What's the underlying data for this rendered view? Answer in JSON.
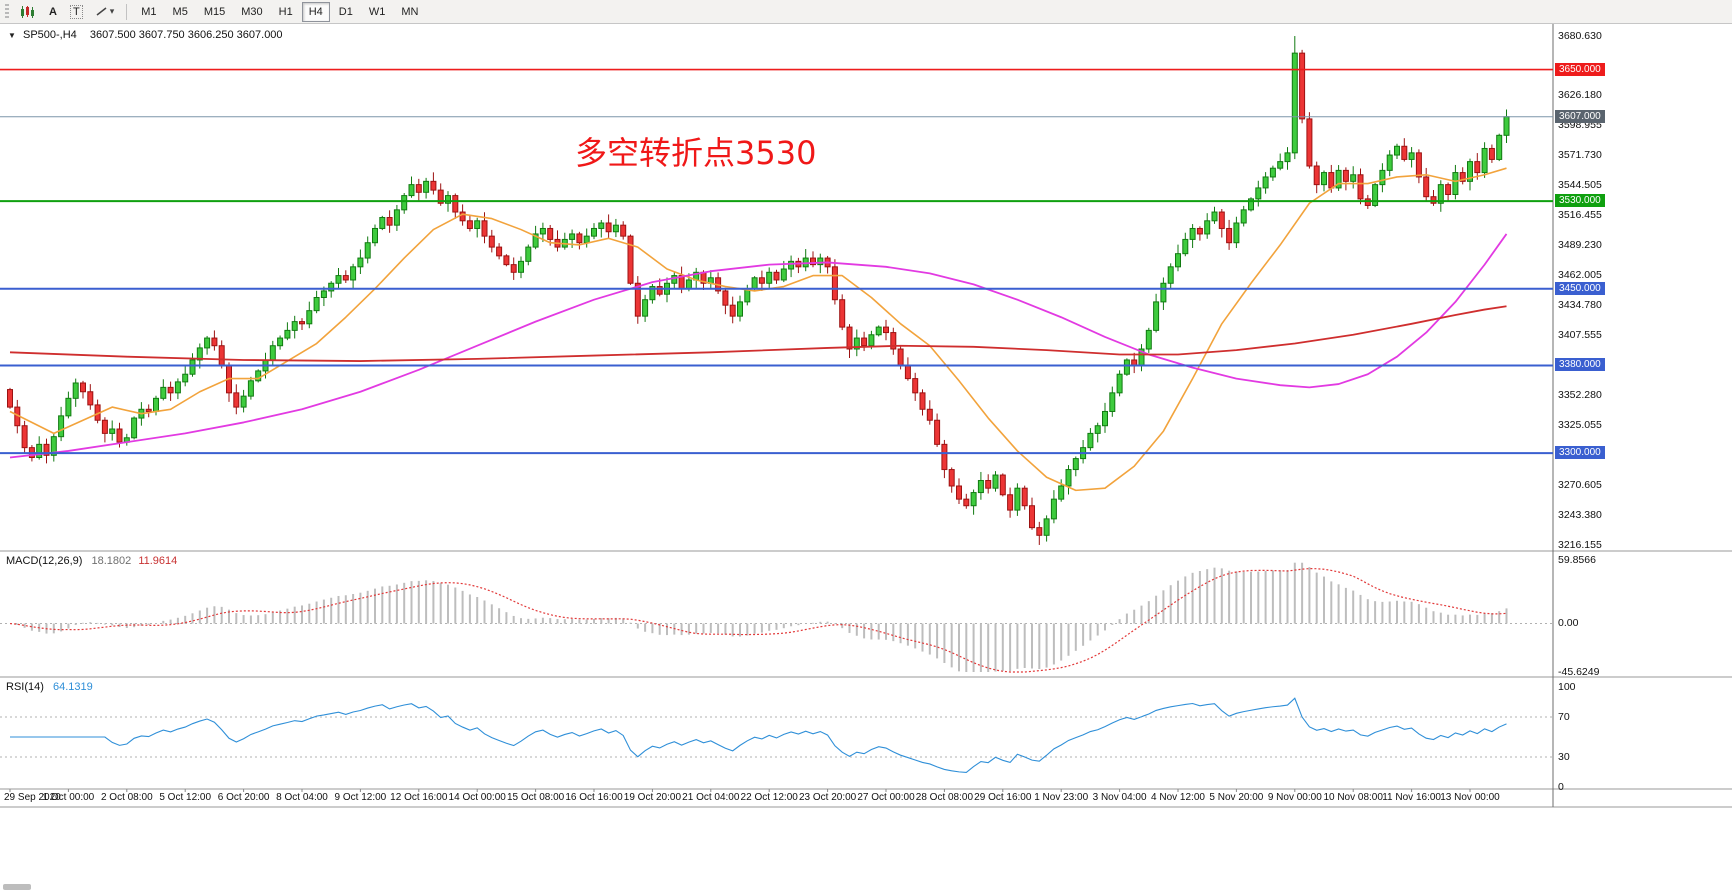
{
  "toolbar": {
    "text_tool_label": "A",
    "label_tool_label": "T",
    "caret_glyph": "▾",
    "timeframes": [
      {
        "label": "M1"
      },
      {
        "label": "M5"
      },
      {
        "label": "M15"
      },
      {
        "label": "M30"
      },
      {
        "label": "H1"
      },
      {
        "label": "H4",
        "active": true
      },
      {
        "label": "D1"
      },
      {
        "label": "W1"
      },
      {
        "label": "MN"
      }
    ]
  },
  "chart_header": {
    "collapse_glyph": "▼",
    "symbol": "SP500-,H4",
    "ohlc": "3607.500 3607.750 3606.250 3607.000"
  },
  "annotation": {
    "text": "多空转折点3530",
    "color": "#f01818"
  },
  "indicators": {
    "macd": {
      "name": "MACD(12,26,9)",
      "main": "18.1802",
      "signal": "11.9614"
    },
    "rsi": {
      "name": "RSI(14)",
      "value": "64.1319"
    }
  },
  "price_scale": {
    "labels": [
      "3680.630",
      "3626.180",
      "3598.955",
      "3571.730",
      "3544.505",
      "3516.455",
      "3489.230",
      "3462.005",
      "3434.780",
      "3407.555",
      "3352.280",
      "3325.055",
      "3270.605",
      "3243.380",
      "3216.155"
    ]
  },
  "time_axis": {
    "labels": [
      {
        "i": 0,
        "t": "29 Sep 2020"
      },
      {
        "i": 8,
        "t": "1 Oct 00:00"
      },
      {
        "i": 16,
        "t": "2 Oct 08:00"
      },
      {
        "i": 24,
        "t": "5 Oct 12:00"
      },
      {
        "i": 32,
        "t": "6 Oct 20:00"
      },
      {
        "i": 40,
        "t": "8 Oct 04:00"
      },
      {
        "i": 48,
        "t": "9 Oct 12:00"
      },
      {
        "i": 56,
        "t": "12 Oct 16:00"
      },
      {
        "i": 64,
        "t": "14 Oct 00:00"
      },
      {
        "i": 72,
        "t": "15 Oct 08:00"
      },
      {
        "i": 80,
        "t": "16 Oct 16:00"
      },
      {
        "i": 88,
        "t": "19 Oct 20:00"
      },
      {
        "i": 96,
        "t": "21 Oct 04:00"
      },
      {
        "i": 104,
        "t": "22 Oct 12:00"
      },
      {
        "i": 112,
        "t": "23 Oct 20:00"
      },
      {
        "i": 120,
        "t": "27 Oct 00:00"
      },
      {
        "i": 128,
        "t": "28 Oct 08:00"
      },
      {
        "i": 136,
        "t": "29 Oct 16:00"
      },
      {
        "i": 144,
        "t": "1 Nov 23:00"
      },
      {
        "i": 152,
        "t": "3 Nov 04:00"
      },
      {
        "i": 160,
        "t": "4 Nov 12:00"
      },
      {
        "i": 168,
        "t": "5 Nov 20:00"
      },
      {
        "i": 176,
        "t": "9 Nov 00:00"
      },
      {
        "i": 184,
        "t": "10 Nov 08:00"
      },
      {
        "i": 192,
        "t": "11 Nov 16:00"
      },
      {
        "i": 200,
        "t": "13 Nov 00:00"
      }
    ]
  },
  "chart_data": {
    "type": "candlestick",
    "symbol": "SP500-",
    "timeframe": "H4",
    "ylim": [
      3216.155,
      3680.63
    ],
    "first_open": 3358,
    "closes": [
      3342,
      3325,
      3305,
      3296,
      3308,
      3298,
      3315,
      3334,
      3350,
      3364,
      3356,
      3344,
      3330,
      3318,
      3322,
      3310,
      3314,
      3332,
      3340,
      3338,
      3350,
      3360,
      3355,
      3365,
      3372,
      3385,
      3396,
      3405,
      3398,
      3380,
      3355,
      3342,
      3352,
      3366,
      3375,
      3385,
      3398,
      3405,
      3412,
      3420,
      3418,
      3430,
      3442,
      3448,
      3455,
      3462,
      3458,
      3470,
      3478,
      3492,
      3505,
      3515,
      3508,
      3522,
      3535,
      3545,
      3538,
      3548,
      3540,
      3528,
      3535,
      3520,
      3512,
      3505,
      3512,
      3498,
      3488,
      3480,
      3472,
      3465,
      3475,
      3488,
      3500,
      3505,
      3495,
      3488,
      3495,
      3500,
      3492,
      3498,
      3505,
      3510,
      3502,
      3508,
      3498,
      3455,
      3425,
      3440,
      3452,
      3445,
      3455,
      3462,
      3450,
      3458,
      3465,
      3455,
      3460,
      3448,
      3435,
      3425,
      3438,
      3450,
      3460,
      3455,
      3465,
      3458,
      3468,
      3475,
      3470,
      3478,
      3472,
      3478,
      3470,
      3440,
      3415,
      3395,
      3405,
      3398,
      3408,
      3415,
      3410,
      3395,
      3380,
      3368,
      3355,
      3340,
      3330,
      3308,
      3285,
      3270,
      3258,
      3252,
      3264,
      3275,
      3268,
      3280,
      3262,
      3248,
      3268,
      3252,
      3232,
      3225,
      3240,
      3258,
      3270,
      3285,
      3295,
      3305,
      3318,
      3325,
      3338,
      3355,
      3372,
      3385,
      3380,
      3395,
      3412,
      3438,
      3455,
      3470,
      3482,
      3495,
      3505,
      3500,
      3512,
      3520,
      3505,
      3492,
      3510,
      3522,
      3532,
      3542,
      3552,
      3560,
      3566,
      3574,
      3665,
      3605,
      3562,
      3545,
      3556,
      3542,
      3558,
      3548,
      3554,
      3532,
      3526,
      3545,
      3558,
      3572,
      3580,
      3568,
      3574,
      3552,
      3534,
      3528,
      3545,
      3536,
      3556,
      3548,
      3566,
      3556,
      3578,
      3568,
      3590,
      3607
    ],
    "wick_overrides": {
      "141": {
        "low": 3216.2
      },
      "176": {
        "high": 3680.6
      },
      "177": {
        "high": 3668
      }
    },
    "hlines": [
      {
        "price": 3650.0,
        "text": "3650.000",
        "color": "#ee1c1c",
        "badge_bg": "#ee1c1c",
        "width": 1.6
      },
      {
        "price": 3530.0,
        "text": "3530.000",
        "color": "#0fa00f",
        "badge_bg": "#0fa00f",
        "width": 2
      },
      {
        "price": 3450.0,
        "text": "3450.000",
        "color": "#3a5fd0",
        "badge_bg": "#3a5fd0",
        "width": 2
      },
      {
        "price": 3380.0,
        "text": "3380.000",
        "color": "#3a5fd0",
        "badge_bg": "#3a5fd0",
        "width": 2
      },
      {
        "price": 3300.0,
        "text": "3300.000",
        "color": "#3a5fd0",
        "badge_bg": "#3a5fd0",
        "width": 2
      }
    ],
    "last_price_line": {
      "price": 3607.0,
      "text": "3607.000",
      "color": "#7d95aa",
      "badge_bg": "#5a646e"
    },
    "ma_overlays": [
      {
        "name": "fast-ma",
        "color": "#f2a33c",
        "width": 1.6,
        "points": [
          [
            0,
            3338
          ],
          [
            6,
            3318
          ],
          [
            10,
            3330
          ],
          [
            14,
            3342
          ],
          [
            18,
            3336
          ],
          [
            22,
            3340
          ],
          [
            26,
            3356
          ],
          [
            30,
            3368
          ],
          [
            34,
            3368
          ],
          [
            38,
            3384
          ],
          [
            42,
            3400
          ],
          [
            46,
            3424
          ],
          [
            50,
            3450
          ],
          [
            54,
            3478
          ],
          [
            58,
            3504
          ],
          [
            62,
            3518
          ],
          [
            66,
            3514
          ],
          [
            70,
            3504
          ],
          [
            74,
            3492
          ],
          [
            78,
            3490
          ],
          [
            82,
            3496
          ],
          [
            86,
            3488
          ],
          [
            90,
            3468
          ],
          [
            94,
            3458
          ],
          [
            98,
            3452
          ],
          [
            102,
            3448
          ],
          [
            106,
            3452
          ],
          [
            110,
            3462
          ],
          [
            114,
            3462
          ],
          [
            118,
            3442
          ],
          [
            122,
            3418
          ],
          [
            126,
            3398
          ],
          [
            130,
            3366
          ],
          [
            134,
            3332
          ],
          [
            138,
            3302
          ],
          [
            142,
            3278
          ],
          [
            146,
            3266
          ],
          [
            150,
            3268
          ],
          [
            154,
            3288
          ],
          [
            158,
            3320
          ],
          [
            162,
            3368
          ],
          [
            166,
            3418
          ],
          [
            170,
            3455
          ],
          [
            174,
            3490
          ],
          [
            178,
            3528
          ],
          [
            182,
            3546
          ],
          [
            186,
            3546
          ],
          [
            190,
            3552
          ],
          [
            194,
            3554
          ],
          [
            198,
            3548
          ],
          [
            202,
            3554
          ],
          [
            205,
            3560
          ]
        ]
      },
      {
        "name": "mid-ma",
        "color": "#e23ae2",
        "width": 1.8,
        "points": [
          [
            0,
            3296
          ],
          [
            8,
            3302
          ],
          [
            16,
            3310
          ],
          [
            24,
            3318
          ],
          [
            32,
            3328
          ],
          [
            40,
            3340
          ],
          [
            48,
            3356
          ],
          [
            56,
            3376
          ],
          [
            64,
            3398
          ],
          [
            72,
            3420
          ],
          [
            80,
            3440
          ],
          [
            88,
            3456
          ],
          [
            96,
            3466
          ],
          [
            104,
            3472
          ],
          [
            112,
            3474
          ],
          [
            120,
            3470
          ],
          [
            126,
            3464
          ],
          [
            132,
            3454
          ],
          [
            138,
            3440
          ],
          [
            144,
            3424
          ],
          [
            150,
            3406
          ],
          [
            156,
            3390
          ],
          [
            162,
            3378
          ],
          [
            168,
            3368
          ],
          [
            174,
            3362
          ],
          [
            178,
            3360
          ],
          [
            182,
            3363
          ],
          [
            186,
            3372
          ],
          [
            190,
            3388
          ],
          [
            194,
            3410
          ],
          [
            198,
            3438
          ],
          [
            202,
            3472
          ],
          [
            205,
            3500
          ]
        ]
      },
      {
        "name": "slow-ma",
        "color": "#cf2e2e",
        "width": 1.8,
        "points": [
          [
            0,
            3392
          ],
          [
            16,
            3388
          ],
          [
            32,
            3385
          ],
          [
            48,
            3384
          ],
          [
            64,
            3386
          ],
          [
            80,
            3389
          ],
          [
            96,
            3392
          ],
          [
            112,
            3396
          ],
          [
            122,
            3398
          ],
          [
            132,
            3397
          ],
          [
            142,
            3394
          ],
          [
            152,
            3390
          ],
          [
            160,
            3390
          ],
          [
            168,
            3394
          ],
          [
            176,
            3400
          ],
          [
            184,
            3408
          ],
          [
            192,
            3418
          ],
          [
            198,
            3426
          ],
          [
            202,
            3431
          ],
          [
            205,
            3434
          ]
        ]
      }
    ],
    "macd_scale": {
      "max": {
        "v": 59.8566,
        "text": "59.8566"
      },
      "zero": {
        "v": 0,
        "text": "0.00"
      },
      "min": {
        "v": -45.6249,
        "text": "-45.6249"
      }
    },
    "macd_params": [
      12,
      26,
      9
    ],
    "rsi_period": 14,
    "rsi_scale": {
      "labels": [
        {
          "v": 100,
          "text": "100"
        },
        {
          "v": 70,
          "text": "70"
        },
        {
          "v": 30,
          "text": "30"
        },
        {
          "v": 0,
          "text": "0"
        }
      ],
      "levels": [
        70,
        30
      ]
    },
    "colors": {
      "up_fill": "#3ecb3e",
      "up_border": "#117a11",
      "down_fill": "#ec3535",
      "down_border": "#9c1212",
      "macd_hist": "#bdbdbd",
      "macd_signal": "#e23939",
      "rsi_line": "#2f8fd8"
    }
  }
}
